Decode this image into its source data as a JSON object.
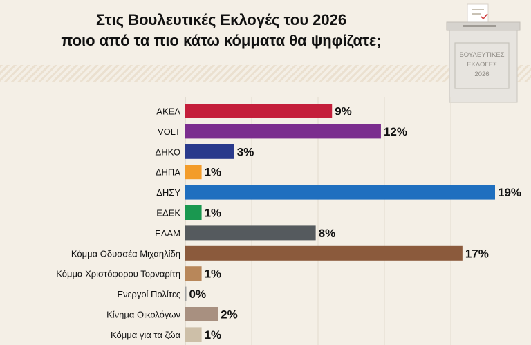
{
  "header": {
    "title_line1": "Στις Βουλευτικές Εκλογές του 2026",
    "title_line2": "ποιο από τα πιο κάτω κόμματα θα ψηφίζατε;"
  },
  "ballot_box": {
    "line1": "ΒΟΥΛΕΥΤΙΚΕΣ",
    "line2": "ΕΚΛΟΓΕΣ",
    "line3": "2026"
  },
  "chart_data": {
    "type": "bar",
    "orientation": "horizontal",
    "categories": [
      "ΑΚΕΛ",
      "VOLT",
      "ΔΗΚΟ",
      "ΔΗΠΑ",
      "ΔΗΣΥ",
      "ΕΔΕΚ",
      "ΕΛΑΜ",
      "Κόμμα Οδυσσέα Μιχαηλίδη",
      "Κόμμα Χριστόφορου Τορναρίτη",
      "Ενεργοί Πολίτες",
      "Κίνημα Οικολόγων",
      "Κόμμα για τα ζώα"
    ],
    "values": [
      9,
      12,
      3,
      1,
      19,
      1,
      8,
      17,
      1,
      0,
      2,
      1
    ],
    "value_labels": [
      "9%",
      "12%",
      "3%",
      "1%",
      "19%",
      "1%",
      "8%",
      "17%",
      "1%",
      "0%",
      "2%",
      "1%"
    ],
    "colors": [
      "#c41e3a",
      "#7b2d8e",
      "#2a3a8c",
      "#f39c2a",
      "#1f6fbf",
      "#1a9850",
      "#555a5e",
      "#8b5a3c",
      "#b8875a",
      "#a0a0a0",
      "#a89080",
      "#cdbfa8"
    ],
    "xlim": [
      0,
      19
    ],
    "grid": true
  }
}
